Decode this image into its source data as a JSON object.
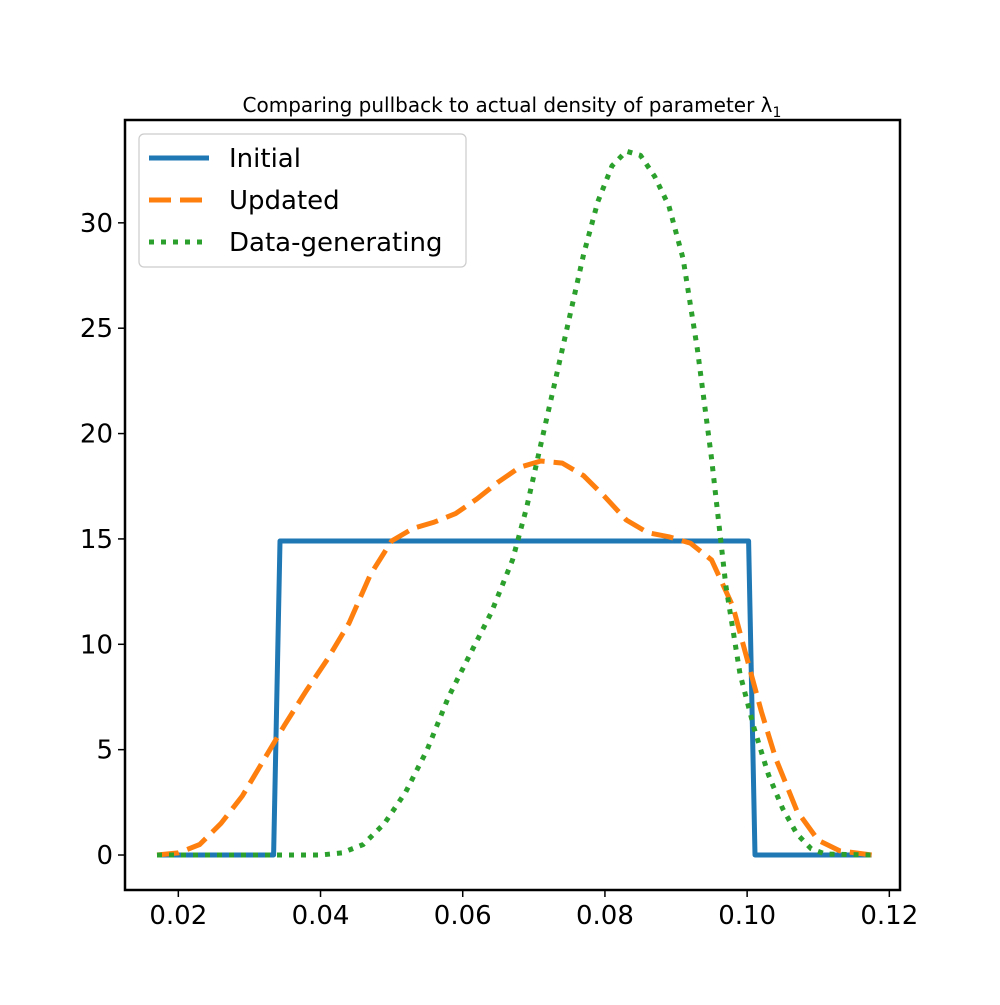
{
  "chart_data": {
    "type": "line",
    "title": "Comparing pullback to actual density of parameter λ",
    "title_subscript": "1",
    "xlabel": "",
    "ylabel": "",
    "xlim": [
      0.0125,
      0.1215
    ],
    "ylim": [
      -1.66,
      34.88
    ],
    "xticks": [
      0.02,
      0.04,
      0.06,
      0.08,
      0.1,
      0.12
    ],
    "xtick_labels": [
      "0.02",
      "0.04",
      "0.06",
      "0.08",
      "0.10",
      "0.12"
    ],
    "yticks": [
      0,
      5,
      10,
      15,
      20,
      25,
      30
    ],
    "ytick_labels": [
      "0",
      "5",
      "10",
      "15",
      "20",
      "25",
      "30"
    ],
    "grid": false,
    "legend_position": "top-left",
    "series": [
      {
        "name": "Initial",
        "color": "#1f77b4",
        "style": "solid",
        "x": [
          0.017,
          0.0334,
          0.0343,
          0.1002,
          0.1011,
          0.1175
        ],
        "y": [
          0,
          0,
          14.9,
          14.9,
          0,
          0
        ]
      },
      {
        "name": "Updated",
        "color": "#ff7f0e",
        "style": "dashed",
        "x": [
          0.017,
          0.02,
          0.023,
          0.026,
          0.029,
          0.032,
          0.035,
          0.038,
          0.041,
          0.044,
          0.047,
          0.05,
          0.053,
          0.056,
          0.059,
          0.062,
          0.065,
          0.068,
          0.071,
          0.074,
          0.077,
          0.08,
          0.083,
          0.086,
          0.089,
          0.092,
          0.095,
          0.098,
          0.1,
          0.102,
          0.104,
          0.107,
          0.11,
          0.113,
          0.1175
        ],
        "y": [
          0,
          0.1,
          0.5,
          1.5,
          2.8,
          4.5,
          6.2,
          7.8,
          9.3,
          11.0,
          13.3,
          14.9,
          15.5,
          15.8,
          16.2,
          16.9,
          17.7,
          18.4,
          18.7,
          18.6,
          18.0,
          17.0,
          15.9,
          15.3,
          15.1,
          14.8,
          14.0,
          11.8,
          9.3,
          6.8,
          4.6,
          2.1,
          0.7,
          0.2,
          0
        ]
      },
      {
        "name": "Data-generating",
        "color": "#2ca02c",
        "style": "dotted",
        "x": [
          0.017,
          0.04,
          0.043,
          0.046,
          0.049,
          0.052,
          0.055,
          0.058,
          0.061,
          0.064,
          0.067,
          0.069,
          0.071,
          0.073,
          0.075,
          0.077,
          0.079,
          0.081,
          0.083,
          0.085,
          0.087,
          0.089,
          0.091,
          0.093,
          0.095,
          0.097,
          0.099,
          0.101,
          0.103,
          0.105,
          0.107,
          0.109,
          0.111,
          0.1175
        ],
        "y": [
          0,
          0,
          0.1,
          0.5,
          1.5,
          3.0,
          5.0,
          7.5,
          9.5,
          11.5,
          14.0,
          16.5,
          19.5,
          22.5,
          25.5,
          28.5,
          31.0,
          32.7,
          33.4,
          33.2,
          32.2,
          30.8,
          28.3,
          24.0,
          18.8,
          12.8,
          8.6,
          6.0,
          3.8,
          2.2,
          1.0,
          0.3,
          0.05,
          0
        ]
      }
    ]
  }
}
